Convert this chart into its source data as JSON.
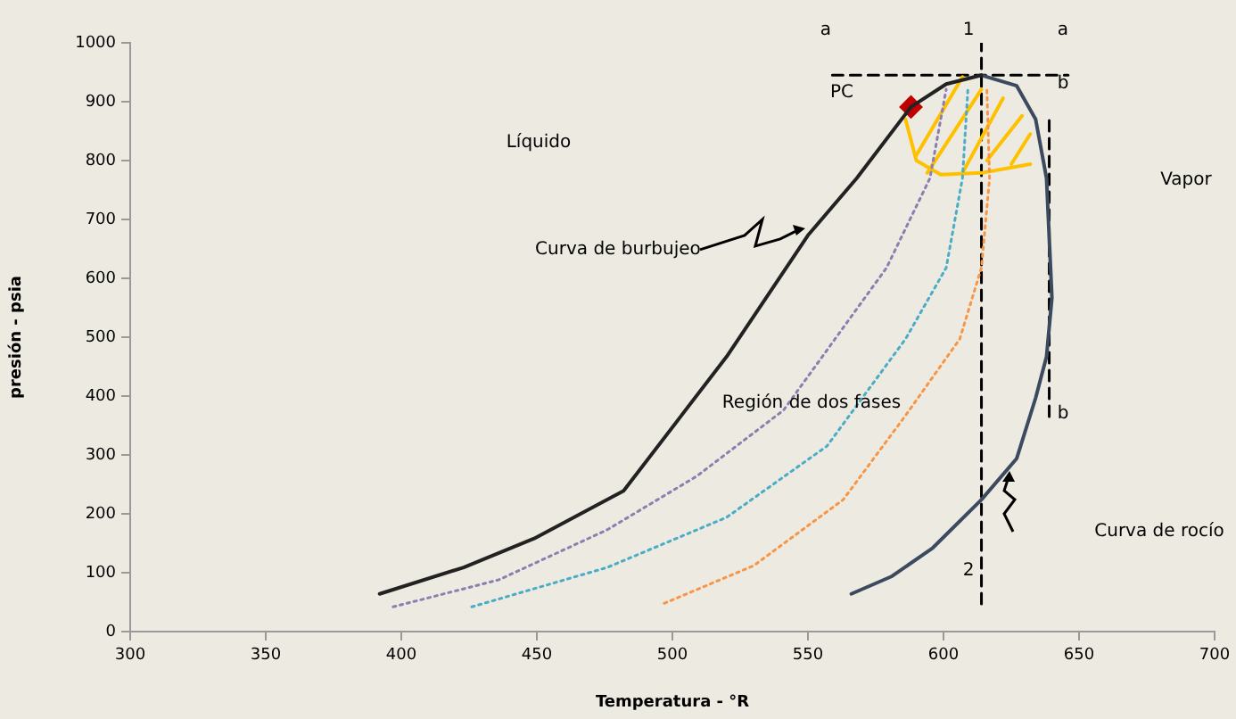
{
  "chart_data": {
    "type": "line",
    "xlabel": "Temperatura - °R",
    "ylabel": "presión - psia",
    "xlim": [
      300,
      700
    ],
    "xticks": [
      300,
      350,
      400,
      450,
      500,
      550,
      600,
      650,
      700
    ],
    "ylim": [
      0,
      1000
    ],
    "yticks": [
      0,
      100,
      200,
      300,
      400,
      500,
      600,
      700,
      800,
      900,
      1000
    ],
    "grid": false,
    "legend": false,
    "series": [
      {
        "color": "#222222",
        "line_style": "solid",
        "x": [
          392,
          423,
          449,
          482,
          520,
          550,
          568,
          588,
          601,
          614
        ],
        "values": [
          64,
          109,
          158,
          239,
          467,
          673,
          770,
          891,
          930,
          945
        ]
      },
      {
        "color": "#3b4a5e",
        "line_style": "solid",
        "x": [
          614,
          627,
          634,
          638,
          640,
          638,
          634,
          627,
          614,
          596,
          581,
          566
        ],
        "values": [
          945,
          927,
          870,
          770,
          567,
          467,
          397,
          294,
          224,
          142,
          94,
          64
        ]
      },
      {
        "color": "#8c7fb0",
        "line_style": "dotted",
        "x": [
          397,
          436,
          476,
          509,
          541,
          560,
          579,
          595,
          601
        ],
        "values": [
          42,
          88,
          173,
          264,
          376,
          497,
          618,
          770,
          921
        ]
      },
      {
        "color": "#4bacc6",
        "line_style": "dotted",
        "x": [
          426,
          476,
          520,
          557,
          586,
          601,
          607,
          609
        ],
        "values": [
          42,
          109,
          194,
          315,
          497,
          618,
          770,
          921
        ]
      },
      {
        "color": "#f79646",
        "line_style": "dotted",
        "x": [
          497,
          530,
          563,
          586,
          606,
          614,
          617,
          616
        ],
        "values": [
          48,
          112,
          224,
          367,
          497,
          618,
          770,
          921
        ]
      },
      {
        "color": "#ffc000",
        "line_style": "solid",
        "x": [
          586,
          590,
          599,
          614,
          632
        ],
        "values": [
          870,
          800,
          776,
          779,
          794
        ]
      },
      {
        "color": "#ffc000",
        "line_style": "solid",
        "x": [
          590,
          607,
          null,
          594,
          614,
          null,
          607,
          622,
          null,
          616,
          629,
          null,
          625,
          632
        ],
        "values": [
          809,
          942,
          null,
          779,
          921,
          null,
          779,
          906,
          null,
          800,
          876,
          null,
          794,
          845
        ]
      },
      {
        "color": "#000000",
        "line_style": "dashed",
        "x": [
          559,
          646
        ],
        "values": [
          945,
          945
        ]
      },
      {
        "color": "#000000",
        "line_style": "dashed",
        "x": [
          614,
          614
        ],
        "values": [
          47,
          1000
        ]
      },
      {
        "color": "#000000",
        "line_style": "dashed",
        "x": [
          639,
          639
        ],
        "values": [
          365,
          870
        ]
      },
      {
        "type": "scatter",
        "color": "#c00000",
        "marker": "diamond",
        "x": [
          588
        ],
        "values": [
          891
        ]
      }
    ],
    "annotations": [
      "Líquido",
      {
        "text": "Curva de burbujeo",
        "x": 549,
        "y": 685
      },
      "Vapor",
      "Región de dos fases",
      "Curva de rocío",
      "PC",
      "a",
      "1",
      "a",
      "b",
      "b",
      "2"
    ]
  }
}
